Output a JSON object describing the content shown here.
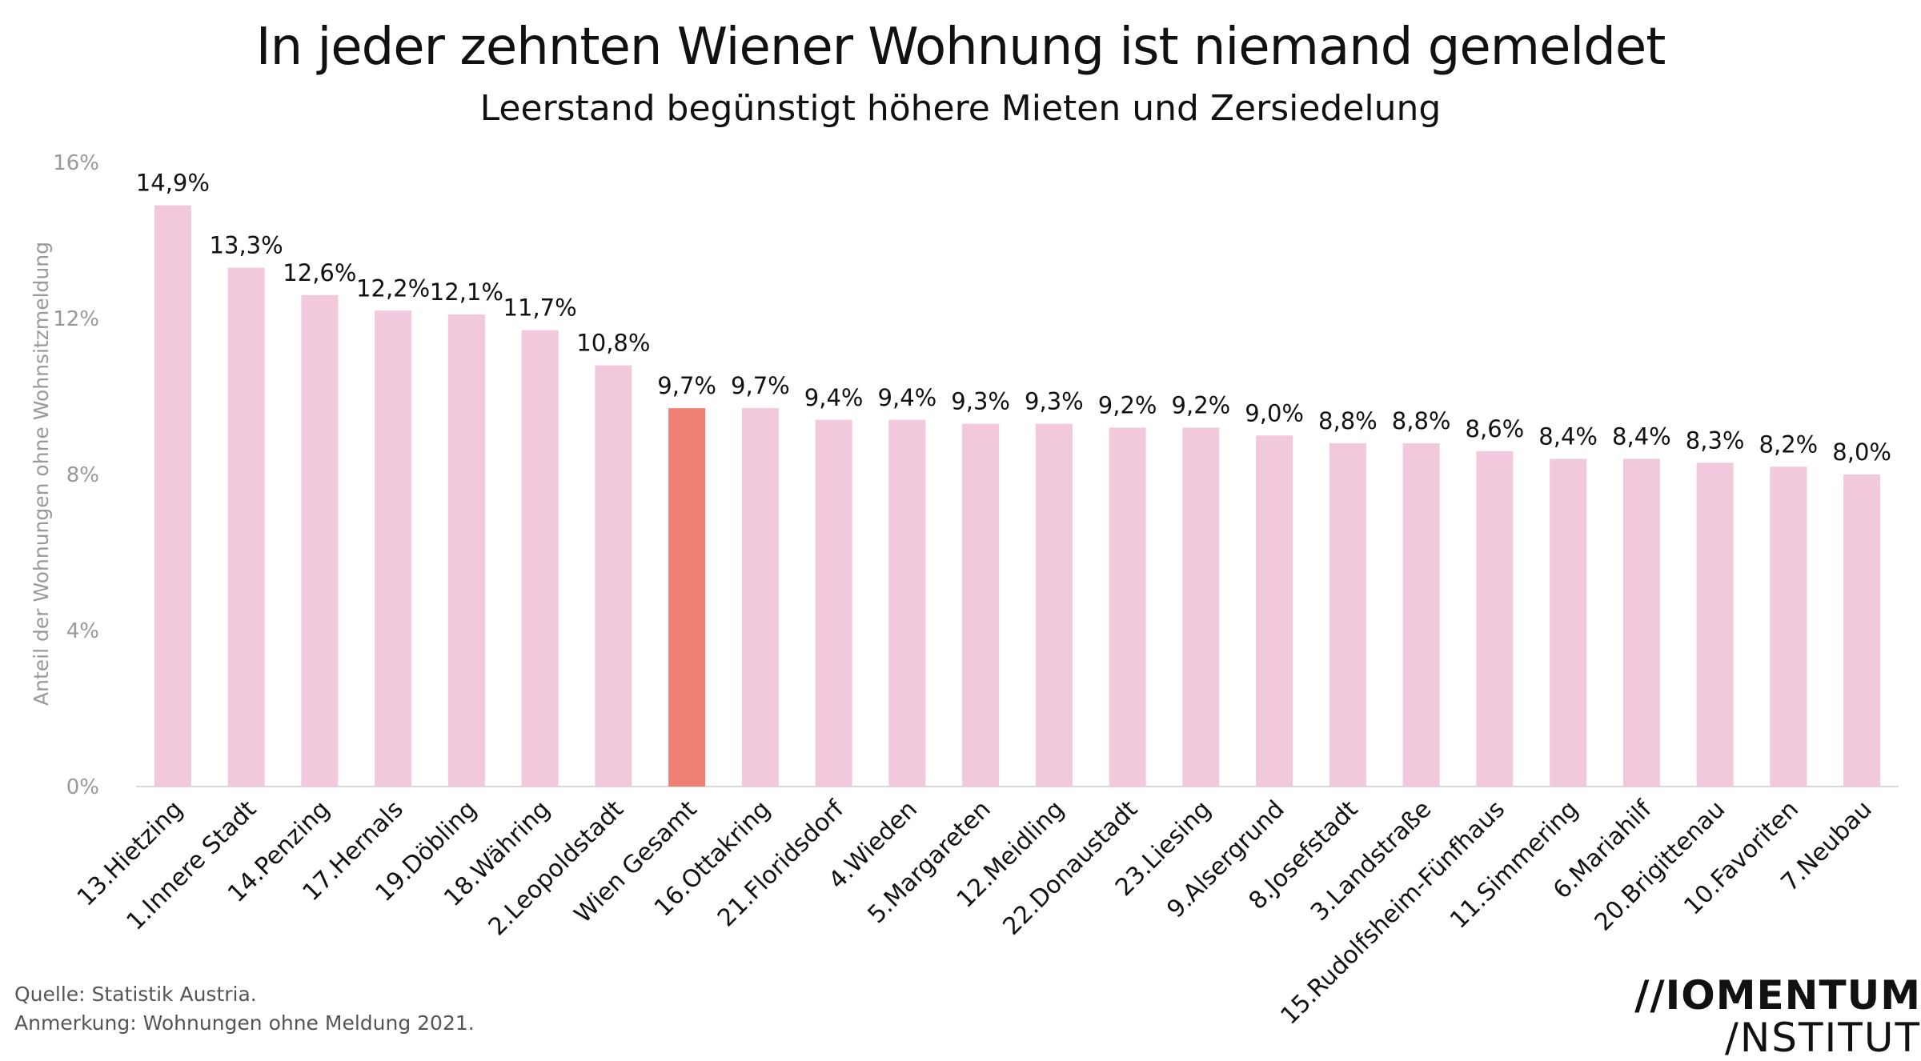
{
  "chart_data": {
    "type": "bar",
    "title": "In jeder zehnten Wiener Wohnung ist niemand gemeldet",
    "subtitle": "Leerstand begünstigt höhere Mieten und Zersiedelung",
    "ylabel": "Anteil der Wohnungen ohne Wohnsitzmeldung",
    "xlabel": "",
    "ylim": [
      0,
      16
    ],
    "yticks": [
      0,
      4,
      8,
      12,
      16
    ],
    "ytick_labels": [
      "0%",
      "4%",
      "8%",
      "12%",
      "16%"
    ],
    "grid": false,
    "categories": [
      "13.Hietzing",
      "1.Innere Stadt",
      "14.Penzing",
      "17.Hernals",
      "19.Döbling",
      "18.Währing",
      "2.Leopoldstadt",
      "Wien Gesamt",
      "16.Ottakring",
      "21.Floridsdorf",
      "4.Wieden",
      "5.Margareten",
      "12.Meidling",
      "22.Donaustadt",
      "23.Liesing",
      "9.Alsergrund",
      "8.Josefstadt",
      "3.Landstraße",
      "15.Rudolfsheim-Fünfhaus",
      "11.Simmering",
      "6.Mariahilf",
      "20.Brigittenau",
      "10.Favoriten",
      "7.Neubau"
    ],
    "values": [
      14.9,
      13.3,
      12.6,
      12.2,
      12.1,
      11.7,
      10.8,
      9.7,
      9.7,
      9.4,
      9.4,
      9.3,
      9.3,
      9.2,
      9.2,
      9.0,
      8.8,
      8.8,
      8.6,
      8.4,
      8.4,
      8.3,
      8.2,
      8.0
    ],
    "data_labels": [
      "14,9%",
      "13,3%",
      "12,6%",
      "12,2%",
      "12,1%",
      "11,7%",
      "10,8%",
      "9,7%",
      "9,7%",
      "9,4%",
      "9,4%",
      "9,3%",
      "9,3%",
      "9,2%",
      "9,2%",
      "9,0%",
      "8,8%",
      "8,8%",
      "8,6%",
      "8,4%",
      "8,4%",
      "8,3%",
      "8,2%",
      "8,0%"
    ],
    "highlight_category": "Wien Gesamt",
    "colors": {
      "bar": "#f1c8dc",
      "highlight": "#ee8075",
      "axis_text": "#999999",
      "label_text": "#111111"
    }
  },
  "footer": {
    "source": "Quelle: Statistik Austria.",
    "note": "Anmerkung: Wohnungen ohne Meldung 2021."
  },
  "logo": {
    "line1": "//IOMENTUM",
    "line2": "/NSTITUT"
  }
}
